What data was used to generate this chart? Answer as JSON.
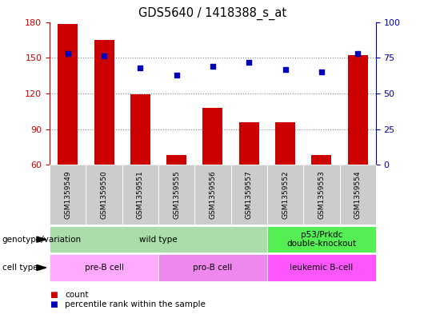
{
  "title": "GDS5640 / 1418388_s_at",
  "samples": [
    "GSM1359549",
    "GSM1359550",
    "GSM1359551",
    "GSM1359555",
    "GSM1359556",
    "GSM1359557",
    "GSM1359552",
    "GSM1359553",
    "GSM1359554"
  ],
  "counts": [
    178,
    165,
    119,
    68,
    108,
    96,
    96,
    68,
    152
  ],
  "percentiles": [
    78,
    76,
    68,
    63,
    69,
    72,
    67,
    65,
    78
  ],
  "ylim_left": [
    60,
    180
  ],
  "yticks_left": [
    60,
    90,
    120,
    150,
    180
  ],
  "ylim_right": [
    0,
    100
  ],
  "yticks_right": [
    0,
    25,
    50,
    75,
    100
  ],
  "bar_color": "#cc0000",
  "dot_color": "#0000bb",
  "bar_width": 0.55,
  "genotype_groups": [
    {
      "label": "wild type",
      "start": 0,
      "end": 6,
      "color": "#aaddaa"
    },
    {
      "label": "p53/Prkdc\ndouble-knockout",
      "start": 6,
      "end": 9,
      "color": "#55ee55"
    }
  ],
  "cell_type_groups": [
    {
      "label": "pre-B cell",
      "start": 0,
      "end": 3,
      "color": "#ffaaff"
    },
    {
      "label": "pro-B cell",
      "start": 3,
      "end": 6,
      "color": "#ee88ee"
    },
    {
      "label": "leukemic B-cell",
      "start": 6,
      "end": 9,
      "color": "#ff55ff"
    }
  ],
  "left_axis_color": "#cc0000",
  "right_axis_color": "#0000bb",
  "grid_color": "#888888",
  "bg_table": "#cccccc",
  "bg_plot": "#ffffff"
}
